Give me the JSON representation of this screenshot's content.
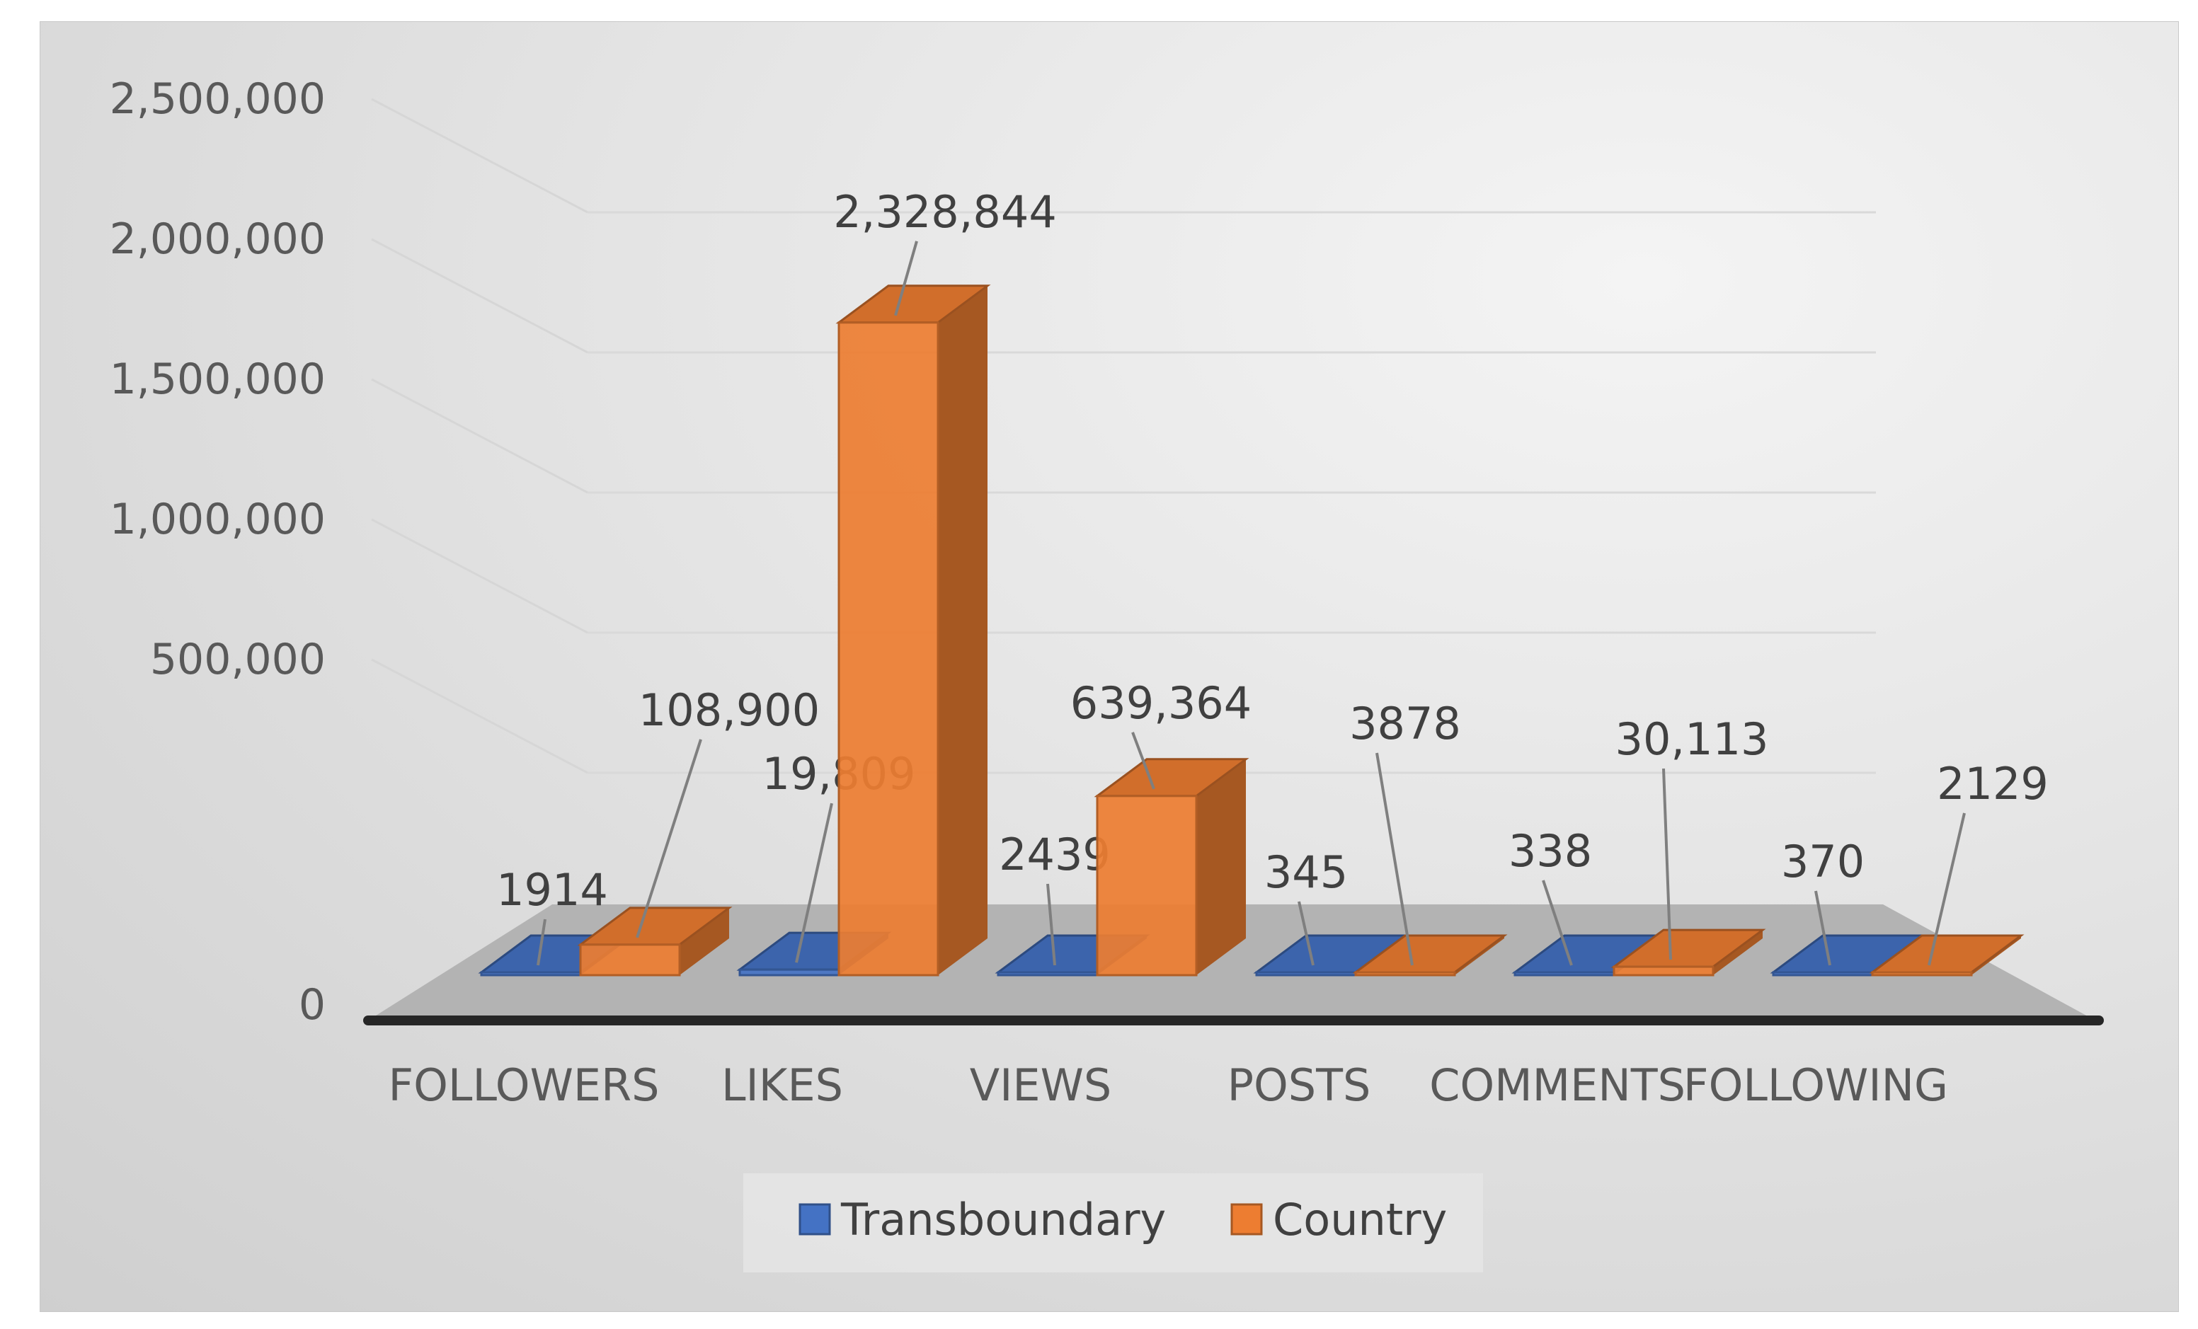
{
  "chart_data": {
    "type": "bar",
    "title": "",
    "xlabel": "",
    "ylabel": "",
    "categories": [
      "FOLLOWERS",
      "LIKES",
      "VIEWS",
      "POSTS",
      "COMMENTS",
      "FOLLOWING"
    ],
    "series": [
      {
        "name": "Transboundary",
        "color": "#4472c4",
        "values": [
          1914,
          19809,
          2439,
          345,
          338,
          370
        ],
        "labels": [
          "1914",
          "19,809",
          "2439",
          "345",
          "338",
          "370"
        ]
      },
      {
        "name": "Country",
        "color": "#ed7d31",
        "values": [
          108900,
          2328844,
          639364,
          3878,
          30113,
          2129
        ],
        "labels": [
          "108,900",
          "2,328,844",
          "639,364",
          "3878",
          "30,113",
          "2129"
        ]
      }
    ],
    "ylim": [
      0,
      2500000
    ],
    "yticks": [
      "0",
      "500,000",
      "1,000,000",
      "1,500,000",
      "2,000,000",
      "2,500,000"
    ],
    "ytick_values": [
      0,
      500000,
      1000000,
      1500000,
      2000000,
      2500000
    ],
    "grid": true,
    "legend_position": "bottom",
    "style": "3d-clustered-column"
  }
}
